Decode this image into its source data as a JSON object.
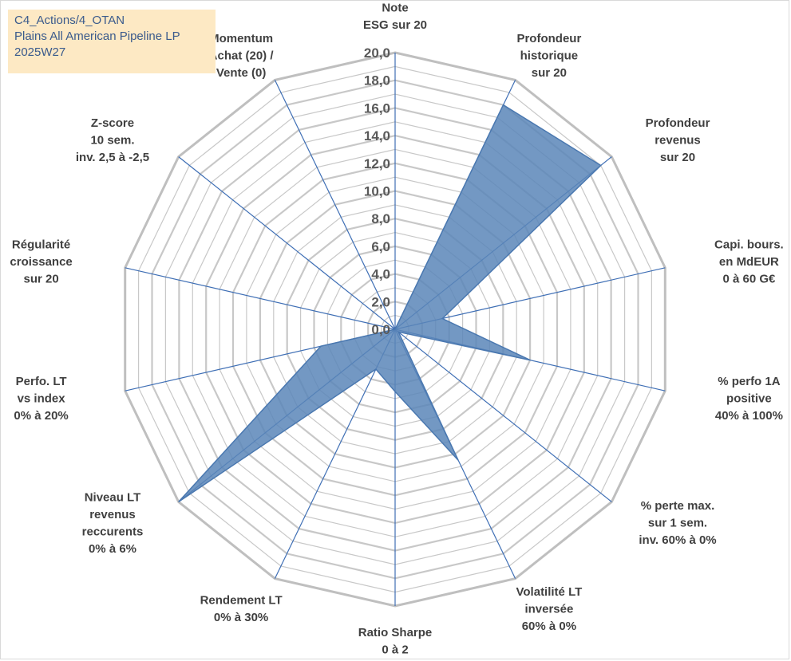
{
  "title_box": {
    "line1": "C4_Actions/4_OTAN",
    "line2": "Plains All American Pipeline LP",
    "line3": "2025W27"
  },
  "chart_data": {
    "type": "radar",
    "axes": [
      [
        "Note",
        "ESG sur 20"
      ],
      [
        "Profondeur",
        "historique",
        "sur 20"
      ],
      [
        "Profondeur",
        "revenus",
        "sur 20"
      ],
      [
        "Capi. bours.",
        "en MdEUR",
        "0 à 60 G€"
      ],
      [
        "% perfo 1A",
        "positive",
        "40% à 100%"
      ],
      [
        "% perte max.",
        "sur 1 sem.",
        "inv. 60% à 0%"
      ],
      [
        "Volatilité LT",
        "inversée",
        "60% à 0%"
      ],
      [
        "Ratio Sharpe",
        "0 à 2"
      ],
      [
        "Rendement LT",
        "0% à 30%"
      ],
      [
        "Niveau LT",
        "revenus",
        "reccurents",
        "0% à 6%"
      ],
      [
        "Perfo. LT",
        "vs index",
        "0% à 20%"
      ],
      [
        "Régularité",
        "croissance",
        "sur 20"
      ],
      [
        "Z-score",
        "10 sem.",
        "inv. 2,5 à -2,5"
      ],
      [
        "Momentum",
        "Achat (20) /",
        "Vente (0)"
      ]
    ],
    "values": [
      0.0,
      18.0,
      19.0,
      3.5,
      10.0,
      0.3,
      10.5,
      4.5,
      3.2,
      20.0,
      5.5,
      0.0,
      0.0,
      0.0
    ],
    "rlim": [
      0,
      20
    ],
    "tick_labels": [
      "0,0",
      "2,0",
      "4,0",
      "6,0",
      "8,0",
      "10,0",
      "12,0",
      "14,0",
      "16,0",
      "18,0",
      "20,0"
    ],
    "colors": {
      "fill": "#5b86b8",
      "stroke": "#4a78b0",
      "spoke": "#3f6fb5",
      "grid": "#c8c8c8",
      "outer": "#bfbfbf"
    },
    "grid": true
  }
}
